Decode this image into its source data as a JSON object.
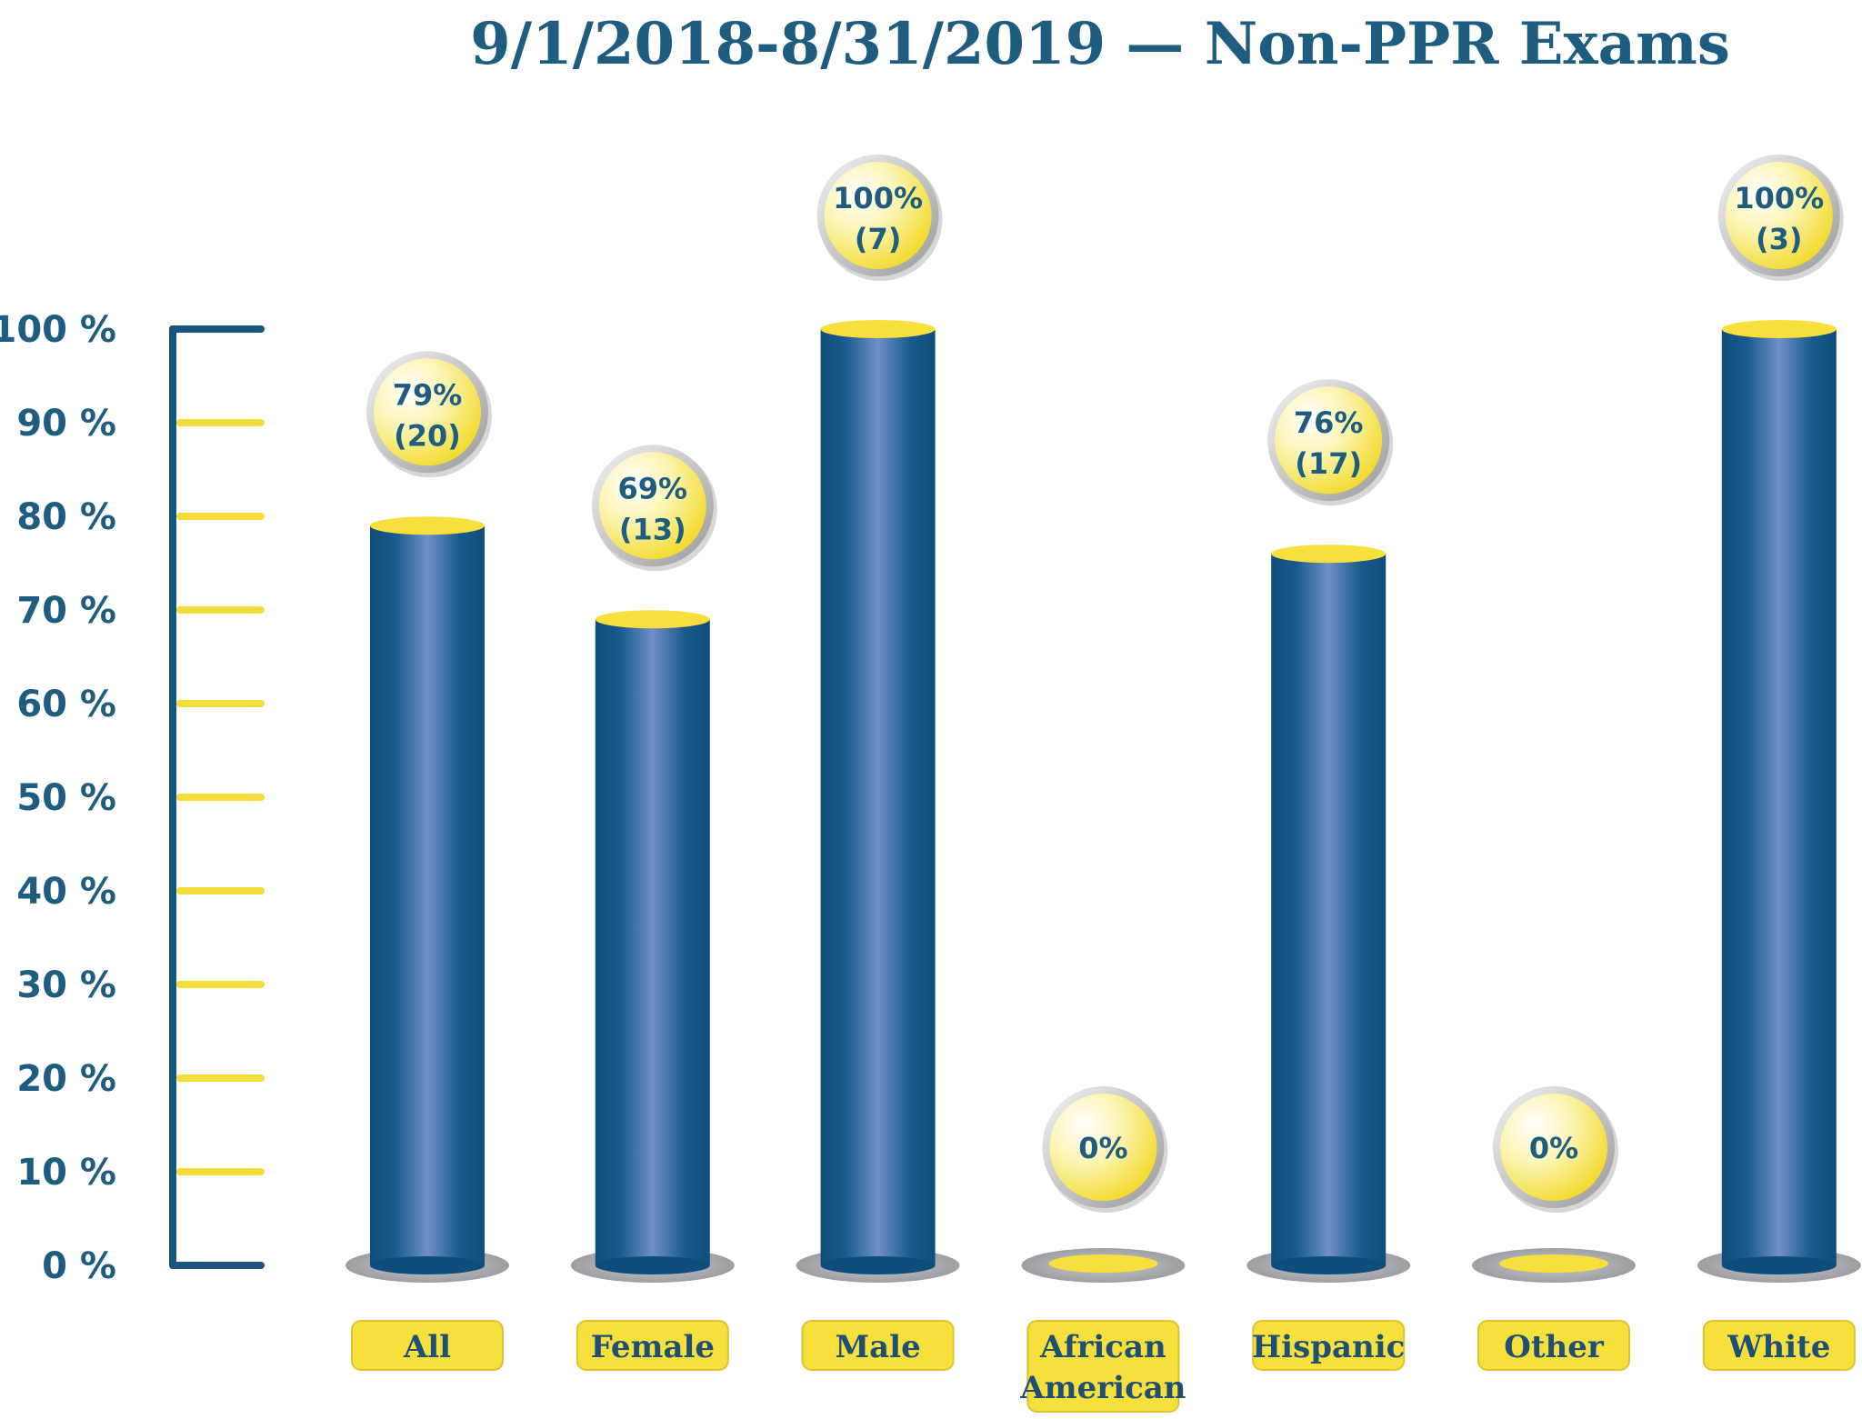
{
  "chart_data": {
    "type": "bar",
    "title": "9/1/2018-8/31/2019 — Non-PPR Exams",
    "categories": [
      [
        "All"
      ],
      [
        "Female"
      ],
      [
        "Male"
      ],
      [
        "African",
        "American"
      ],
      [
        "Hispanic"
      ],
      [
        "Other"
      ],
      [
        "White"
      ]
    ],
    "values": [
      79,
      69,
      100,
      0,
      76,
      0,
      100
    ],
    "value_labels": [
      "79%",
      "69%",
      "100%",
      "0%",
      "76%",
      "0%",
      "100%"
    ],
    "count_labels": [
      "(20)",
      "(13)",
      "(7)",
      "",
      "(17)",
      "",
      "(3)"
    ],
    "y_ticks": [
      "0 %",
      "10 %",
      "20 %",
      "30 %",
      "40 %",
      "50 %",
      "60 %",
      "70 %",
      "80 %",
      "90 %",
      "100 %"
    ],
    "ylim": [
      0,
      100
    ],
    "grid": false,
    "legend": "none",
    "colors": {
      "bar": "#0f4f7c",
      "bar_highlight": "#6f8fc8",
      "bar_top": "#f7e03c",
      "axis": "#1a5580",
      "tick": "#f4dd3a",
      "label_box": "#f7e03c",
      "text": "#1e5d80"
    }
  }
}
